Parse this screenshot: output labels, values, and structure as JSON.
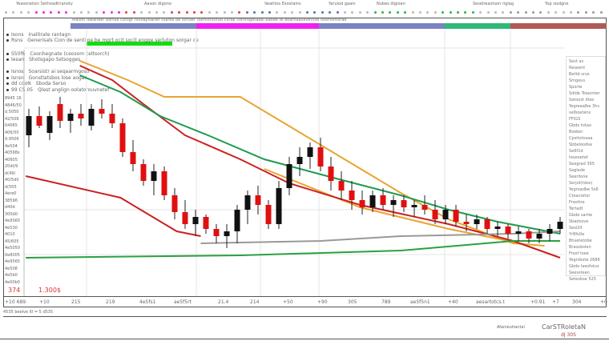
{
  "header": {
    "titles": [
      "Yeasoration Sethoadtrianoty",
      "Aason digono",
      "Veatitos Exostains",
      "Yaruiod gaain",
      "Nubes digioan",
      "Seselreaxtson riglag",
      "Yop sizdgne"
    ],
    "status_line": "Mallon fbeaneer bortoe corogr rovoajroaiter toaroe be tortoer toemontorad corae comrogetaael baoee te eoarnaavelonnoe toomontorae"
  },
  "legend": {
    "items": [
      {
        "code": "Isons",
        "label": "Inalitrate rantagn"
      },
      {
        "code": "Rsns",
        "label": "Generisals Cion de sentiloe be mgrt ocit socit engge serluton sorgar ce"
      },
      {
        "code": "S50f6",
        "label": "Coonhegnate (ceosom celtsorch)"
      },
      {
        "code": "Iesan",
        "label": "Shotsgapo Sstsogges"
      },
      {
        "code": "Isnos",
        "label": "Soarsistr ai seqaarmgoso"
      },
      {
        "code": "Isnsn",
        "label": "Gonstlatsbos lose aogar"
      },
      {
        "code": "dd cdoN",
        "label": "Sboda Serso"
      },
      {
        "code": "99 C5.05",
        "label": "Qlest anglign oolatorouvnetef"
      }
    ]
  },
  "y_labels": [
    "8945 16",
    "4846/50",
    "d.5050",
    "42/506",
    "04065",
    "406/50",
    "9.9506",
    "4e504",
    "40598s",
    "40605",
    "20dt/9",
    "d(49)",
    "40/5d0",
    "d(505",
    "4ere0",
    "38596",
    "d40d",
    "300d0",
    "4e9S60",
    "4e530",
    "4010",
    "45/605",
    "4e5050",
    "0e8005",
    "4e9565",
    "4e508",
    "4e5b0",
    "4e00b0"
  ],
  "price_marker": {
    "left": "374",
    "main": "1.300$"
  },
  "x_labels": [
    "+10 689",
    "+10",
    "215",
    "219",
    "4e5fs1",
    "ae5f5rt",
    "21.4",
    "214",
    "+50",
    "+90",
    "305",
    "789",
    "ae5f5n1",
    "+40",
    "aesartotcs.t",
    "+0.91",
    "+7",
    "304",
    "+0"
  ],
  "footer": {
    "note": "4535 beelve I0 = 5 d535",
    "caption": "Afanieutiantal",
    "brand": "CarSTRoletaN",
    "code": "dJ 30S"
  },
  "right_panel": [
    "Sest as",
    "Reseent",
    "Bettd srus",
    "Smgeus",
    "Sporte",
    "Sdlde Toiaonter",
    "Satoost dtas",
    "Yegreaalbe 3hs",
    "selboetens",
    "FFIGS",
    "Gbdo totao",
    "Bseber",
    "Cpsitotosaa",
    "Sbbeloodse",
    "Se6f1d teseoetet",
    "Seagrad 395",
    "Saglede",
    "Seerilone",
    "Serjot(tdos)",
    "Yegroadbe 5s6",
    "Cteacretor",
    "Froottre",
    "Tertadt",
    "Gbde sartie",
    "Sbadsove",
    "Sesl2lt",
    "YrBfs0e",
    "Bhsetetobe",
    "Brasobslen",
    "Froof tsee",
    "Yegnibote 2686",
    "Gbdo laesfotus",
    "Seessteen",
    "Setesbse 525"
  ],
  "colors": {
    "up": "#111111",
    "down": "#e01010",
    "bars": [
      "#7b83c0",
      "#ee22ee",
      "#7b83c0",
      "#2fb87a",
      "#b05a55"
    ],
    "green_bar": "#11dd11"
  },
  "chart_data": {
    "type": "candlestick",
    "ylim": [
      0,
      100
    ],
    "grid": true,
    "candles": [
      [
        67,
        78,
        62,
        75
      ],
      [
        75,
        79,
        70,
        71
      ],
      [
        68,
        77,
        65,
        75
      ],
      [
        80,
        83,
        70,
        73
      ],
      [
        73,
        78,
        68,
        76
      ],
      [
        76,
        80,
        71,
        74
      ],
      [
        71,
        80,
        69,
        78
      ],
      [
        78,
        82,
        74,
        76
      ],
      [
        76,
        80,
        70,
        72
      ],
      [
        72,
        74,
        58,
        60
      ],
      [
        60,
        65,
        52,
        55
      ],
      [
        55,
        57,
        46,
        48
      ],
      [
        48,
        55,
        42,
        52
      ],
      [
        52,
        54,
        40,
        42
      ],
      [
        42,
        45,
        32,
        35
      ],
      [
        35,
        40,
        28,
        30
      ],
      [
        30,
        36,
        25,
        33
      ],
      [
        33,
        34,
        26,
        28
      ],
      [
        28,
        30,
        22,
        25
      ],
      [
        25,
        30,
        20,
        27
      ],
      [
        27,
        38,
        22,
        36
      ],
      [
        36,
        44,
        30,
        42
      ],
      [
        42,
        46,
        34,
        38
      ],
      [
        38,
        40,
        28,
        30
      ],
      [
        30,
        48,
        28,
        45
      ],
      [
        45,
        58,
        42,
        55
      ],
      [
        55,
        62,
        50,
        58
      ],
      [
        58,
        64,
        53,
        62
      ],
      [
        62,
        66,
        52,
        54
      ],
      [
        54,
        58,
        44,
        48
      ],
      [
        48,
        52,
        40,
        44
      ],
      [
        44,
        48,
        36,
        40
      ],
      [
        40,
        44,
        34,
        37
      ],
      [
        37,
        44,
        35,
        42
      ],
      [
        42,
        45,
        36,
        38
      ],
      [
        38,
        42,
        33,
        40
      ],
      [
        40,
        42,
        35,
        37
      ],
      [
        37,
        40,
        33,
        38
      ],
      [
        38,
        42,
        34,
        36
      ],
      [
        36,
        40,
        30,
        32
      ],
      [
        32,
        38,
        30,
        36
      ],
      [
        36,
        38,
        29,
        31
      ],
      [
        31,
        34,
        27,
        30
      ],
      [
        30,
        34,
        28,
        32
      ],
      [
        32,
        33,
        26,
        28
      ],
      [
        28,
        31,
        25,
        29
      ],
      [
        29,
        30,
        24,
        26
      ],
      [
        26,
        29,
        23,
        27
      ],
      [
        27,
        28,
        22,
        24
      ],
      [
        24,
        28,
        22,
        26
      ],
      [
        26,
        30,
        23,
        28
      ],
      [
        28,
        33,
        26,
        31
      ]
    ],
    "lines": [
      {
        "color": "#e8a530",
        "points": [
          [
            4.9,
            98
          ],
          [
            9.5,
            90
          ],
          [
            13,
            83
          ],
          [
            20.3,
            83
          ],
          [
            28,
            63
          ],
          [
            35.7,
            43
          ],
          [
            40.3,
            32
          ],
          [
            46.5,
            22
          ],
          [
            49.5,
            21
          ]
        ]
      },
      {
        "color": "#e8a530",
        "points": [
          [
            22.6,
            53
          ],
          [
            31.8,
            37
          ],
          [
            40.3,
            28
          ],
          [
            47.2,
            22
          ]
        ]
      },
      {
        "color": "#cc2020",
        "points": [
          [
            4.9,
            96
          ],
          [
            8,
            90
          ],
          [
            11,
            80
          ],
          [
            15,
            67
          ],
          [
            20.3,
            57
          ],
          [
            25,
            47
          ],
          [
            31.8,
            38
          ],
          [
            40.3,
            30
          ],
          [
            46.5,
            23
          ],
          [
            51,
            16
          ]
        ]
      },
      {
        "color": "#1f9a50",
        "points": [
          [
            4.9,
            92
          ],
          [
            8.8,
            85
          ],
          [
            12.6,
            75
          ],
          [
            17.2,
            67
          ],
          [
            22.6,
            57
          ],
          [
            29.5,
            49
          ],
          [
            35.7,
            42
          ],
          [
            40.3,
            36
          ],
          [
            45,
            31
          ],
          [
            51,
            26
          ]
        ]
      },
      {
        "color": "#cc2020",
        "points": [
          [
            -0.3,
            50
          ],
          [
            8.8,
            41
          ],
          [
            14.2,
            27
          ],
          [
            16.5,
            25
          ]
        ]
      },
      {
        "color": "#999999",
        "points": [
          [
            16.5,
            22
          ],
          [
            28,
            23
          ],
          [
            35.7,
            25
          ],
          [
            46.5,
            26
          ],
          [
            51,
            27
          ]
        ]
      },
      {
        "color": "#2aa040",
        "points": [
          [
            -0.3,
            16
          ],
          [
            20.3,
            17
          ],
          [
            35.7,
            19
          ],
          [
            46.5,
            23
          ],
          [
            51,
            23
          ]
        ]
      }
    ]
  }
}
